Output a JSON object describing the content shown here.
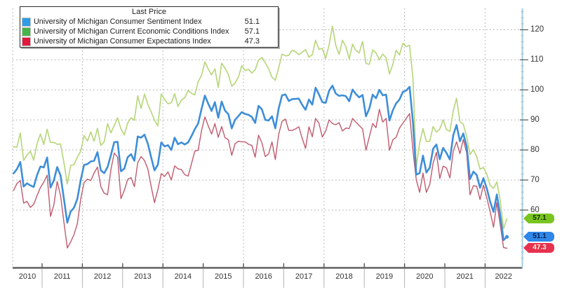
{
  "legend": {
    "title": "Last Price",
    "items": [
      {
        "label": "University of Michigan Consumer Sentiment Index",
        "value": "51.1",
        "swatch_color": "#2e9ce8"
      },
      {
        "label": "University of Michigan Current Economic Conditions Index",
        "value": "57.1",
        "swatch_color": "#44b549"
      },
      {
        "label": "University of Michigan Consumer Expectations Index",
        "value": "47.3",
        "swatch_color": "#e3173e"
      }
    ]
  },
  "y_axis": {
    "tick_labels": [
      "120",
      "110",
      "100",
      "90",
      "80",
      "70",
      "60"
    ],
    "axis_color": "#a6cbdd"
  },
  "x_axis": {
    "years": [
      "2010",
      "2011",
      "2012",
      "2013",
      "2014",
      "2015",
      "2016",
      "2017",
      "2018",
      "2019",
      "2020",
      "2021",
      "2022"
    ]
  },
  "badges": [
    {
      "text": "57.1",
      "bg": "#79c41f",
      "fg": "#11300a"
    },
    {
      "text": "51.1",
      "bg": "#2f87e8",
      "fg": "#0a1f4d"
    },
    {
      "text": "47.3",
      "bg": "#e6314f",
      "fg": "#fdf3d8"
    }
  ],
  "chart_data": {
    "type": "line",
    "title": "",
    "x_range": {
      "start": "2010-04",
      "end": "2022-07",
      "frequency": "monthly"
    },
    "x_tick_labels": [
      "2010",
      "2011",
      "2012",
      "2013",
      "2014",
      "2015",
      "2016",
      "2017",
      "2018",
      "2019",
      "2020",
      "2021",
      "2022"
    ],
    "xlabel": "",
    "ylabel": "",
    "ylim": [
      41,
      127
    ],
    "y_ticks": [
      60,
      70,
      80,
      90,
      100,
      110,
      120
    ],
    "grid": "dotted",
    "gridline_vertical_years": [
      2012,
      2014,
      2016,
      2018,
      2020,
      2022
    ],
    "legend_position": "top-left",
    "series": [
      {
        "name": "University of Michigan Consumer Sentiment Index",
        "color": "#3e8ed8",
        "last_price": 51.1,
        "values": [
          72.2,
          73.6,
          76.0,
          67.8,
          68.9,
          68.2,
          67.7,
          71.6,
          74.5,
          74.2,
          77.5,
          67.5,
          69.8,
          74.3,
          71.5,
          63.7,
          55.8,
          59.5,
          60.8,
          63.7,
          69.9,
          75.0,
          75.3,
          76.2,
          76.4,
          79.3,
          73.2,
          72.3,
          74.3,
          78.3,
          82.6,
          82.7,
          72.9,
          73.8,
          77.6,
          78.6,
          76.4,
          84.5,
          84.1,
          85.1,
          82.1,
          77.5,
          73.2,
          75.1,
          82.5,
          81.2,
          81.6,
          80.0,
          84.1,
          81.9,
          82.5,
          81.8,
          82.5,
          84.6,
          86.9,
          88.8,
          93.6,
          98.1,
          95.4,
          93.0,
          95.9,
          90.7,
          96.1,
          93.1,
          91.9,
          87.2,
          90.0,
          91.3,
          92.6,
          92.0,
          91.7,
          91.0,
          89.0,
          94.7,
          93.5,
          90.0,
          89.8,
          91.2,
          87.2,
          93.8,
          98.2,
          98.5,
          96.3,
          96.9,
          97.0,
          97.1,
          95.0,
          93.4,
          96.8,
          95.1,
          100.7,
          98.5,
          95.9,
          95.7,
          99.7,
          101.4,
          98.8,
          98.0,
          98.2,
          97.9,
          96.2,
          100.1,
          98.6,
          97.5,
          98.3,
          91.2,
          93.8,
          98.4,
          97.2,
          100.0,
          98.2,
          98.4,
          89.8,
          93.2,
          95.5,
          96.8,
          99.3,
          99.8,
          101.0,
          89.1,
          71.8,
          72.3,
          78.1,
          72.5,
          74.1,
          80.4,
          81.8,
          76.9,
          80.7,
          79.0,
          76.8,
          84.9,
          88.3,
          82.9,
          85.5,
          81.2,
          70.3,
          72.8,
          71.7,
          67.4,
          70.6,
          67.2,
          62.8,
          59.4,
          65.2,
          58.4,
          50.0,
          51.1
        ]
      },
      {
        "name": "University of Michigan Current Economic Conditions Index",
        "color": "#b9d77e",
        "last_price": 57.1,
        "values": [
          81.0,
          81.0,
          85.6,
          76.5,
          78.3,
          79.6,
          76.6,
          82.1,
          85.3,
          81.8,
          86.9,
          82.5,
          82.5,
          81.9,
          82.0,
          75.8,
          68.7,
          74.9,
          75.1,
          77.6,
          79.6,
          84.8,
          83.0,
          86.0,
          82.9,
          87.2,
          81.5,
          82.7,
          88.7,
          85.7,
          88.1,
          90.7,
          87.0,
          85.0,
          89.0,
          90.7,
          89.9,
          98.0,
          93.8,
          98.6,
          95.2,
          92.6,
          89.9,
          88.0,
          98.6,
          96.8,
          95.4,
          95.7,
          98.7,
          94.5,
          96.6,
          97.4,
          99.8,
          98.9,
          98.3,
          102.7,
          104.8,
          109.3,
          106.9,
          105.0,
          107.0,
          100.8,
          108.9,
          107.2,
          105.1,
          101.2,
          102.3,
          104.3,
          108.1,
          106.4,
          106.8,
          105.6,
          106.7,
          109.9,
          110.8,
          109.0,
          107.0,
          104.2,
          103.2,
          107.3,
          111.9,
          111.3,
          111.5,
          113.2,
          112.7,
          111.7,
          112.5,
          113.4,
          110.9,
          111.7,
          116.5,
          113.5,
          113.8,
          110.5,
          114.9,
          121.2,
          114.9,
          111.8,
          116.5,
          114.4,
          110.3,
          115.2,
          113.1,
          112.3,
          116.1,
          108.8,
          108.5,
          113.3,
          112.3,
          110.0,
          111.9,
          110.7,
          105.3,
          108.5,
          113.2,
          111.6,
          115.5,
          114.4,
          114.8,
          103.7,
          74.3,
          82.3,
          87.1,
          82.8,
          82.9,
          87.8,
          85.9,
          87.0,
          90.0,
          86.7,
          86.2,
          93.0,
          97.2,
          89.4,
          88.6,
          84.5,
          78.5,
          80.1,
          77.7,
          73.6,
          74.2,
          72.0,
          68.2,
          67.2,
          69.4,
          63.3,
          53.8,
          57.1
        ]
      },
      {
        "name": "University of Michigan Consumer Expectations Index",
        "color": "#c05a6e",
        "last_price": 47.3,
        "values": [
          66.5,
          68.8,
          69.8,
          62.3,
          62.9,
          60.9,
          61.9,
          64.8,
          67.5,
          69.3,
          71.6,
          57.9,
          61.6,
          69.5,
          64.8,
          56.0,
          47.4,
          49.4,
          51.8,
          55.4,
          63.6,
          69.1,
          70.3,
          69.8,
          72.3,
          74.3,
          67.8,
          65.6,
          65.1,
          73.5,
          79.0,
          77.6,
          63.8,
          66.6,
          70.2,
          70.8,
          67.8,
          75.8,
          77.8,
          76.5,
          73.7,
          67.8,
          62.5,
          66.8,
          72.1,
          71.2,
          72.7,
          70.0,
          74.7,
          73.7,
          73.5,
          71.8,
          71.3,
          75.4,
          79.6,
          79.9,
          86.4,
          91.0,
          88.0,
          85.3,
          88.8,
          84.2,
          87.8,
          84.1,
          83.4,
          78.2,
          82.1,
          82.9,
          82.7,
          82.7,
          81.9,
          81.5,
          77.6,
          84.9,
          82.4,
          77.8,
          78.7,
          82.7,
          76.8,
          85.2,
          89.5,
          90.3,
          86.5,
          86.5,
          87.0,
          87.7,
          83.9,
          80.5,
          87.7,
          84.4,
          90.5,
          88.9,
          84.3,
          86.3,
          90.0,
          88.8,
          88.4,
          89.1,
          86.3,
          87.3,
          87.1,
          90.5,
          89.3,
          88.1,
          87.0,
          79.9,
          84.4,
          88.8,
          87.4,
          93.5,
          89.3,
          90.5,
          79.9,
          83.4,
          84.2,
          87.3,
          88.9,
          90.5,
          92.1,
          79.7,
          70.1,
          65.9,
          72.3,
          65.9,
          68.5,
          75.6,
          79.2,
          70.5,
          74.6,
          74.0,
          70.7,
          79.7,
          82.7,
          78.8,
          83.5,
          79.0,
          65.1,
          68.1,
          67.9,
          63.5,
          68.3,
          64.1,
          59.4,
          54.3,
          62.5,
          55.2,
          47.5,
          47.3
        ]
      }
    ]
  }
}
